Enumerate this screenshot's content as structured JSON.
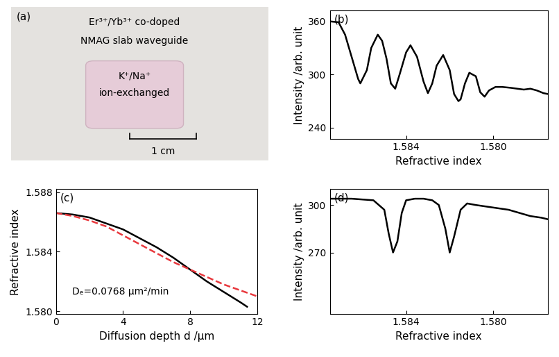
{
  "photo": {
    "panel": "(a)",
    "texts": [
      "Er³⁺/Yb³⁺ co-doped",
      "NMAG slab waveguide",
      "K⁺/Na⁺",
      "ion-exchanged"
    ],
    "scale_bar": "1 cm"
  },
  "chart_data": [
    {
      "type": "line",
      "panel": "(b)",
      "x_label": "Refractive index",
      "y_label": "Intensity /arb. unit",
      "xlim": [
        1.5875,
        1.5775
      ],
      "xticks": [
        1.584,
        {
          "value": 1.58,
          "label": "1.580"
        }
      ],
      "ylim": [
        227,
        372
      ],
      "yticks": [
        240,
        300,
        360
      ],
      "series": [
        {
          "color": "#000000",
          "line_style": "solid",
          "x": [
            1.5875,
            1.5871,
            1.5868,
            1.5865,
            1.5862,
            1.5861,
            1.5858,
            1.5856,
            1.5853,
            1.5851,
            1.5849,
            1.5847,
            1.5845,
            1.5843,
            1.584,
            1.5838,
            1.5835,
            1.5832,
            1.583,
            1.5828,
            1.5826,
            1.5823,
            1.582,
            1.5818,
            1.5816,
            1.5815,
            1.5813,
            1.5811,
            1.5808,
            1.5806,
            1.5804,
            1.5802,
            1.5799,
            1.5796,
            1.5792,
            1.5789,
            1.5786,
            1.5783,
            1.578,
            1.5777,
            1.5775
          ],
          "values": [
            360,
            359,
            345,
            320,
            295,
            290,
            305,
            330,
            345,
            338,
            318,
            290,
            284,
            300,
            325,
            333,
            320,
            292,
            279,
            290,
            310,
            322,
            305,
            278,
            270,
            272,
            290,
            302,
            298,
            280,
            275,
            282,
            286,
            286,
            285,
            284,
            283,
            284,
            282,
            279,
            278
          ]
        }
      ]
    },
    {
      "type": "line",
      "panel": "(c)",
      "x_label": "Diffusion depth d /μm",
      "y_label": "Refractive index",
      "annotations": [
        "Dₑ=0.0768 μm²/min"
      ],
      "xlim": [
        0,
        12
      ],
      "xticks": [
        0,
        4,
        8,
        12
      ],
      "ylim": [
        1.5798,
        1.5882
      ],
      "yticks": [
        {
          "value": 1.58,
          "label": "1.580"
        },
        1.584,
        1.588
      ],
      "series": [
        {
          "color": "#000000",
          "line_style": "solid",
          "x": [
            0,
            1,
            2,
            3,
            4,
            5,
            6,
            7,
            8,
            9,
            10,
            11,
            11.4
          ],
          "values": [
            1.5866,
            1.5865,
            1.5863,
            1.5859,
            1.5855,
            1.5849,
            1.5843,
            1.5836,
            1.5828,
            1.582,
            1.5813,
            1.5806,
            1.5803
          ]
        },
        {
          "color": "#e8383d",
          "line_style": "dashed",
          "x": [
            0,
            1,
            2,
            3,
            4,
            5,
            6,
            7,
            8,
            9,
            10,
            11,
            12
          ],
          "values": [
            1.5866,
            1.5864,
            1.5861,
            1.5857,
            1.5851,
            1.5845,
            1.5839,
            1.5833,
            1.5828,
            1.5823,
            1.5818,
            1.5814,
            1.581
          ]
        }
      ]
    },
    {
      "type": "line",
      "panel": "(d)",
      "x_label": "Refractive index",
      "y_label": "Intensity /arb. unit",
      "xlim": [
        1.5875,
        1.5775
      ],
      "xticks": [
        1.584,
        {
          "value": 1.58,
          "label": "1.580"
        }
      ],
      "ylim": [
        231,
        310
      ],
      "yticks": [
        270,
        300
      ],
      "series": [
        {
          "color": "#000000",
          "line_style": "solid",
          "x": [
            1.5875,
            1.5865,
            1.5855,
            1.585,
            1.5848,
            1.5846,
            1.5844,
            1.5842,
            1.584,
            1.5836,
            1.5832,
            1.5828,
            1.5825,
            1.5822,
            1.582,
            1.5818,
            1.5815,
            1.5812,
            1.5808,
            1.5803,
            1.5798,
            1.5793,
            1.5788,
            1.5783,
            1.5778,
            1.5775
          ],
          "values": [
            304,
            304,
            303,
            297,
            282,
            270,
            277,
            295,
            303,
            304,
            304,
            303,
            300,
            285,
            270,
            280,
            297,
            301,
            300,
            299,
            298,
            297,
            295,
            293,
            292,
            291
          ]
        }
      ]
    }
  ]
}
